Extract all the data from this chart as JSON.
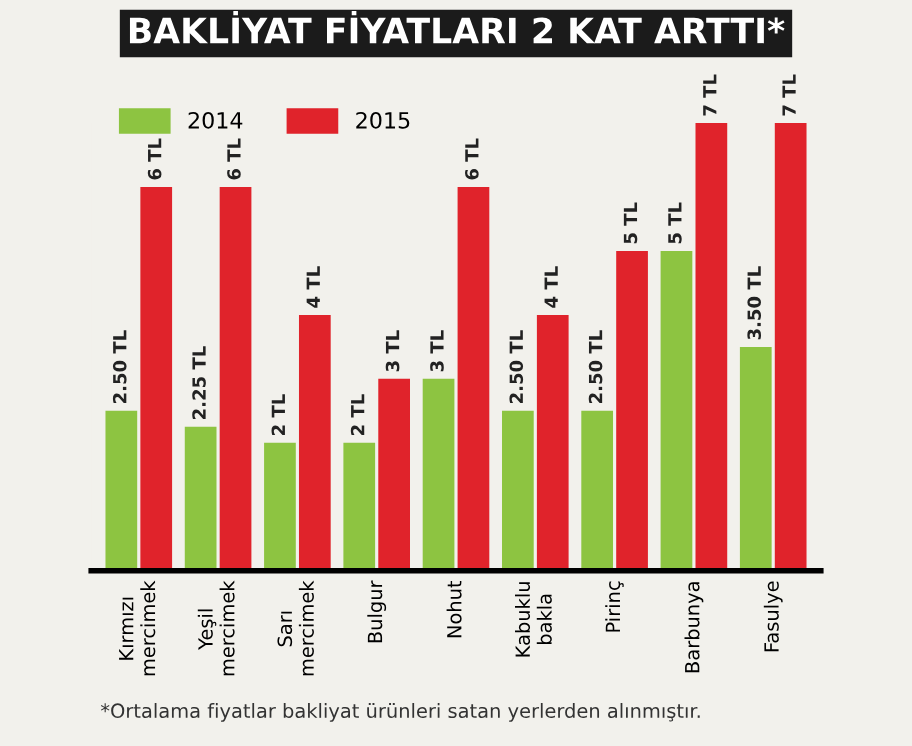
{
  "chart_data": {
    "type": "bar",
    "title": "BAKLİYAT FİYATLARI 2 KAT ARTTI*",
    "categories": [
      "Kırmızı\nmercimek",
      "Yeşil\nmercimek",
      "Sarı\nmercimek",
      "Bulgur",
      "Nohut",
      "Kabuklu\nbakla",
      "Pirinç",
      "Barbunya",
      "Fasulye"
    ],
    "series": [
      {
        "name": "2014",
        "color": "#8dc441",
        "values": [
          2.5,
          2.25,
          2,
          2,
          3,
          2.5,
          2.5,
          5,
          3.5
        ],
        "value_labels": [
          "2.50 TL",
          "2.25 TL",
          "2 TL",
          "2 TL",
          "3 TL",
          "2.50 TL",
          "2.50 TL",
          "5 TL",
          "3.50 TL"
        ]
      },
      {
        "name": "2015",
        "color": "#e0232b",
        "values": [
          6,
          6,
          4,
          3,
          6,
          4,
          5,
          7,
          7
        ],
        "value_labels": [
          "6 TL",
          "6 TL",
          "4 TL",
          "3 TL",
          "6 TL",
          "4 TL",
          "5 TL",
          "7 TL",
          "7 TL"
        ]
      }
    ],
    "legend": "top left",
    "annotations": [
      "*Ortalama fiyatlar bakliyat ürünleri satan yerlerden alınmıştır."
    ]
  }
}
